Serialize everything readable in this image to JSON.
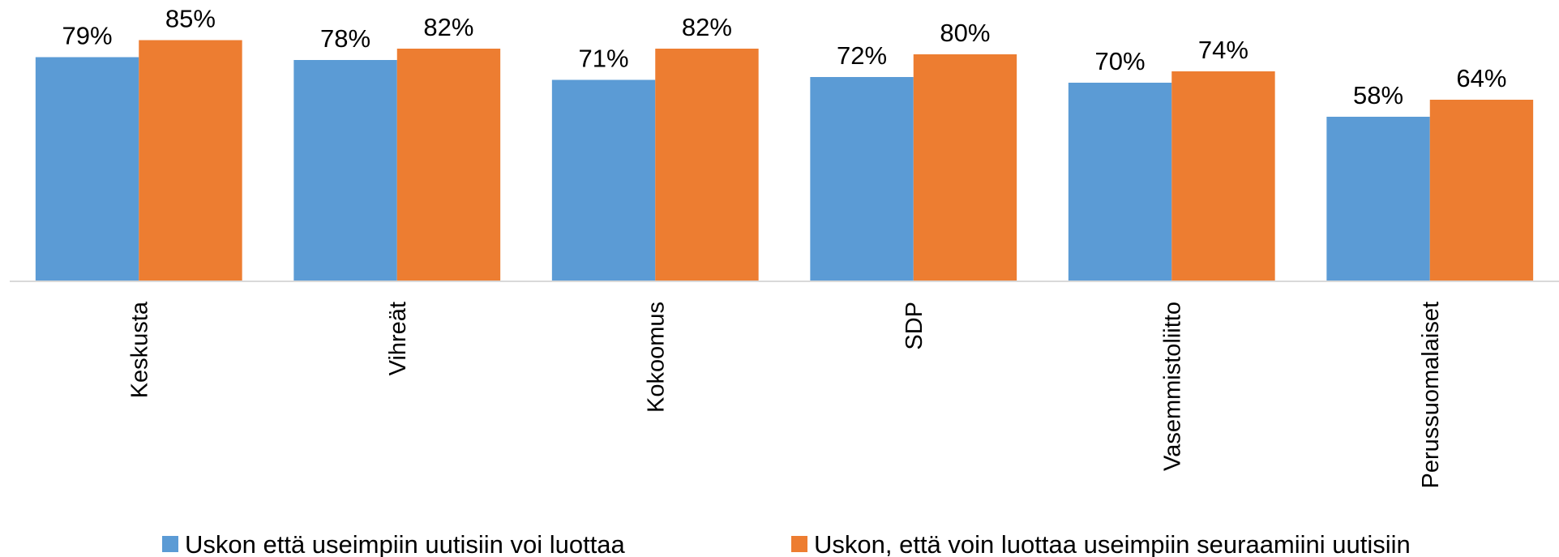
{
  "chart_data": {
    "type": "bar",
    "categories": [
      "Keskusta",
      "Vihreät",
      "Kokoomus",
      "SDP",
      "Vasemmistoliitto",
      "Perussuomalaiset"
    ],
    "series": [
      {
        "name": "Uskon että useimpiin uutisiin voi luottaa",
        "color": "#5b9bd5",
        "values": [
          79,
          78,
          71,
          72,
          70,
          58
        ],
        "value_labels": [
          "79%",
          "78%",
          "71%",
          "72%",
          "70%",
          "58%"
        ]
      },
      {
        "name": "Uskon, että voin luottaa useimpiin seuraamiini uutisiin",
        "color": "#ed7d31",
        "values": [
          85,
          82,
          82,
          80,
          74,
          64
        ],
        "value_labels": [
          "85%",
          "82%",
          "82%",
          "80%",
          "74%",
          "64%"
        ]
      }
    ],
    "ylim": [
      0,
      100
    ]
  }
}
